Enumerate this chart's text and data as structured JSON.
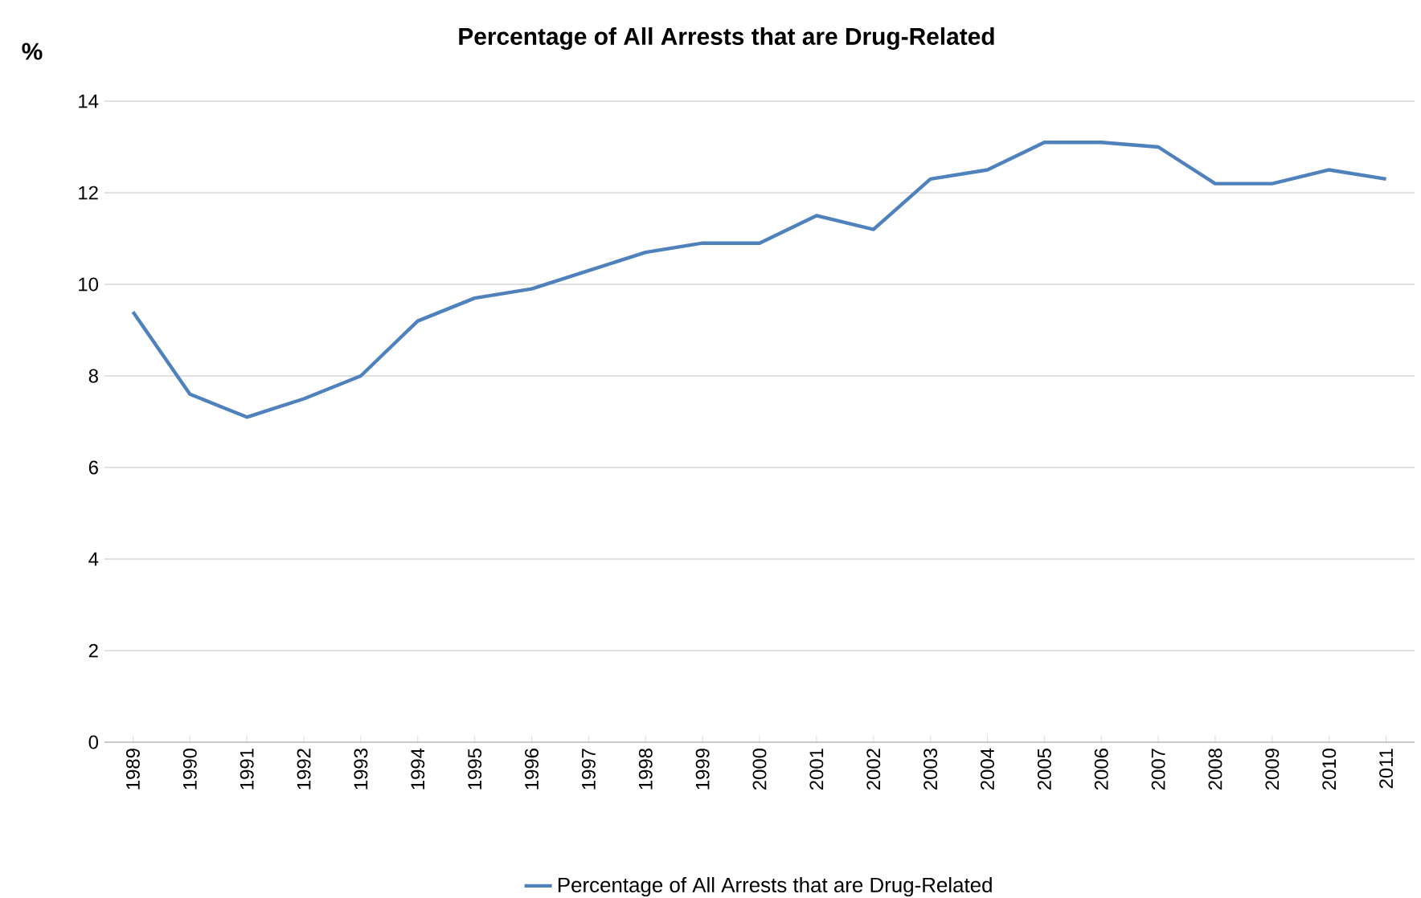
{
  "chart_data": {
    "type": "line",
    "title": "Percentage of All Arrests that are Drug-Related",
    "ylabel": "%",
    "categories": [
      "1989",
      "1990",
      "1991",
      "1992",
      "1993",
      "1994",
      "1995",
      "1996",
      "1997",
      "1998",
      "1999",
      "2000",
      "2001",
      "2002",
      "2003",
      "2004",
      "2005",
      "2006",
      "2007",
      "2008",
      "2009",
      "2010",
      "2011"
    ],
    "series": [
      {
        "name": "Percentage of All Arrests that are Drug-Related",
        "color": "#4f81bd",
        "values": [
          9.4,
          7.6,
          7.1,
          7.5,
          8.0,
          9.2,
          9.7,
          9.9,
          10.3,
          10.7,
          10.9,
          10.9,
          11.5,
          11.2,
          12.3,
          12.5,
          13.1,
          13.1,
          13.0,
          12.2,
          12.2,
          12.5,
          12.3
        ]
      }
    ],
    "ylim": [
      0,
      14
    ],
    "yticks": [
      0,
      2,
      4,
      6,
      8,
      10,
      12,
      14
    ],
    "grid": "y",
    "legend": "bottom",
    "marker": "none",
    "line_style": "solid"
  }
}
